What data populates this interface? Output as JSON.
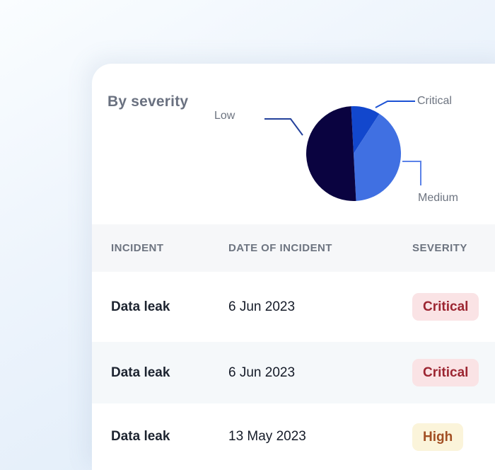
{
  "card": {
    "title": "By severity"
  },
  "chart_data": {
    "type": "pie",
    "title": "By severity",
    "slices": [
      {
        "label": "Critical",
        "value": 10,
        "color": "#1247cd"
      },
      {
        "label": "Medium",
        "value": 40,
        "color": "#4070e2"
      },
      {
        "label": "Low",
        "value": 50,
        "color": "#0a0340"
      }
    ],
    "unit": "percent",
    "start_angle_deg": -3,
    "legend_position": "callout-labels",
    "leader_colors": {
      "low": "#24419b",
      "critical": "#1c52d4",
      "medium": "#5b82e8"
    }
  },
  "table": {
    "headers": [
      "INCIDENT",
      "DATE OF INCIDENT",
      "SEVERITY"
    ],
    "rows": [
      {
        "incident": "Data leak",
        "date": "6 Jun 2023",
        "severity": "Critical",
        "severity_level": "critical"
      },
      {
        "incident": "Data leak",
        "date": "6 Jun 2023",
        "severity": "Critical",
        "severity_level": "critical"
      },
      {
        "incident": "Data leak",
        "date": "13 May 2023",
        "severity": "High",
        "severity_level": "high"
      }
    ],
    "severity_colors": {
      "critical": {
        "bg": "#fae3e5",
        "text": "#9c2531"
      },
      "high": {
        "bg": "#fbf4da",
        "text": "#a24f23"
      }
    }
  }
}
